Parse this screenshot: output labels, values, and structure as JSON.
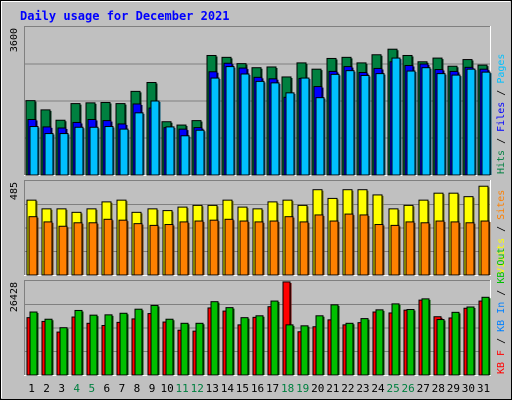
{
  "chart_data": {
    "type": "bar",
    "title": "Daily usage for December 2021",
    "categories": [
      "1",
      "2",
      "3",
      "4",
      "5",
      "6",
      "7",
      "8",
      "9",
      "10",
      "11",
      "12",
      "13",
      "14",
      "15",
      "16",
      "17",
      "18",
      "19",
      "20",
      "21",
      "22",
      "23",
      "24",
      "25",
      "26",
      "27",
      "28",
      "29",
      "30",
      "31"
    ],
    "weekend_days": [
      "4",
      "5",
      "11",
      "12",
      "18",
      "19",
      "25",
      "26"
    ],
    "panels": [
      {
        "id": "hits",
        "ymax_label": "3600",
        "ylim": [
          0,
          4000
        ],
        "right_label_parts": [
          {
            "text": "Hits",
            "color": "#008040"
          },
          {
            "text": " / ",
            "color": "#000000"
          },
          {
            "text": "Files",
            "color": "#0000ff"
          },
          {
            "text": " / ",
            "color": "#000000"
          },
          {
            "text": "Pages",
            "color": "#00c0ff"
          }
        ],
        "series": [
          {
            "name": "Hits",
            "color": "#008040",
            "values": [
              2010,
              1760,
              1480,
              1930,
              1950,
              1960,
              1930,
              2260,
              2500,
              1440,
              1350,
              1470,
              3230,
              3180,
              3010,
              2900,
              2920,
              2650,
              3030,
              2860,
              3150,
              3180,
              3030,
              3250,
              3400,
              3230,
              3060,
              3160,
              2940,
              3120,
              2970
            ]
          },
          {
            "name": "Files",
            "color": "#0000ff",
            "values": [
              1500,
              1300,
              1270,
              1420,
              1500,
              1470,
              1380,
              1920,
              1810,
              1280,
              1240,
              1280,
              2790,
              3020,
              2890,
              2640,
              2600,
              2100,
              2610,
              2390,
              2800,
              2930,
              2770,
              2880,
              3060,
              2960,
              3000,
              2850,
              2800,
              2910,
              2860
            ]
          },
          {
            "name": "Pages",
            "color": "#00c0ff",
            "values": [
              1310,
              1120,
              1120,
              1290,
              1290,
              1310,
              1240,
              1680,
              2000,
              1300,
              1060,
              1210,
              2620,
              2930,
              2730,
              2530,
              2490,
              2220,
              2620,
              2090,
              2720,
              2820,
              2690,
              2740,
              3160,
              2810,
              2900,
              2740,
              2700,
              2860,
              2780
            ]
          }
        ]
      },
      {
        "id": "visits",
        "ymax_label": "485",
        "ylim": [
          0,
          540
        ],
        "right_label_parts": [
          {
            "text": "Visits",
            "color": "#ffff00"
          },
          {
            "text": " / ",
            "color": "#000000"
          },
          {
            "text": "Sites",
            "color": "#ff8000"
          }
        ],
        "series": [
          {
            "name": "Visits",
            "color": "#ffff00",
            "values": [
              430,
              380,
              380,
              360,
              380,
              420,
              430,
              360,
              380,
              370,
              390,
              400,
              400,
              430,
              390,
              380,
              420,
              430,
              400,
              490,
              440,
              490,
              490,
              460,
              380,
              400,
              430,
              470,
              470,
              450,
              510
            ]
          },
          {
            "name": "Sites",
            "color": "#ff8000",
            "values": [
              335,
              305,
              280,
              300,
              300,
              320,
              315,
              295,
              285,
              290,
              305,
              310,
              315,
              320,
              310,
              305,
              310,
              335,
              305,
              345,
              310,
              350,
              345,
              290,
              285,
              305,
              300,
              310,
              305,
              300,
              310
            ]
          }
        ]
      },
      {
        "id": "volume",
        "ymax_label": "26428",
        "ylim": [
          0,
          30000
        ],
        "right_label_parts": [
          {
            "text": "KB F",
            "color": "#ff0000"
          },
          {
            "text": " / ",
            "color": "#000000"
          },
          {
            "text": "KB In",
            "color": "#0080ff"
          },
          {
            "text": " / ",
            "color": "#000000"
          },
          {
            "text": "KB Out",
            "color": "#00c000"
          }
        ],
        "series": [
          {
            "name": "KB F",
            "color": "#ff0000",
            "values": [
              18300,
              17100,
              13700,
              18500,
              16500,
              15800,
              16800,
              17900,
              19600,
              16900,
              14300,
              14000,
              21400,
              20400,
              16000,
              18400,
              21800,
              29700,
              13800,
              15400,
              17600,
              16000,
              16700,
              20100,
              19800,
              20700,
              23900,
              18600,
              18200,
              21300,
              23600
            ]
          },
          {
            "name": "KB In",
            "color": "#0080ff",
            "values": [
              0,
              0,
              0,
              0,
              0,
              0,
              0,
              0,
              0,
              0,
              0,
              0,
              0,
              0,
              0,
              0,
              0,
              0,
              0,
              0,
              0,
              0,
              0,
              0,
              0,
              0,
              0,
              0,
              0,
              0,
              0
            ]
          },
          {
            "name": "KB Out",
            "color": "#00c000",
            "values": [
              20100,
              17800,
              15100,
              20600,
              19100,
              19200,
              19700,
              21000,
              22200,
              17800,
              16500,
              16500,
              23400,
              21500,
              18300,
              18900,
              23600,
              16000,
              15700,
              18900,
              22400,
              16500,
              18000,
              20800,
              22700,
              20900,
              24300,
              17700,
              20000,
              21700,
              24800
            ]
          }
        ]
      }
    ]
  }
}
